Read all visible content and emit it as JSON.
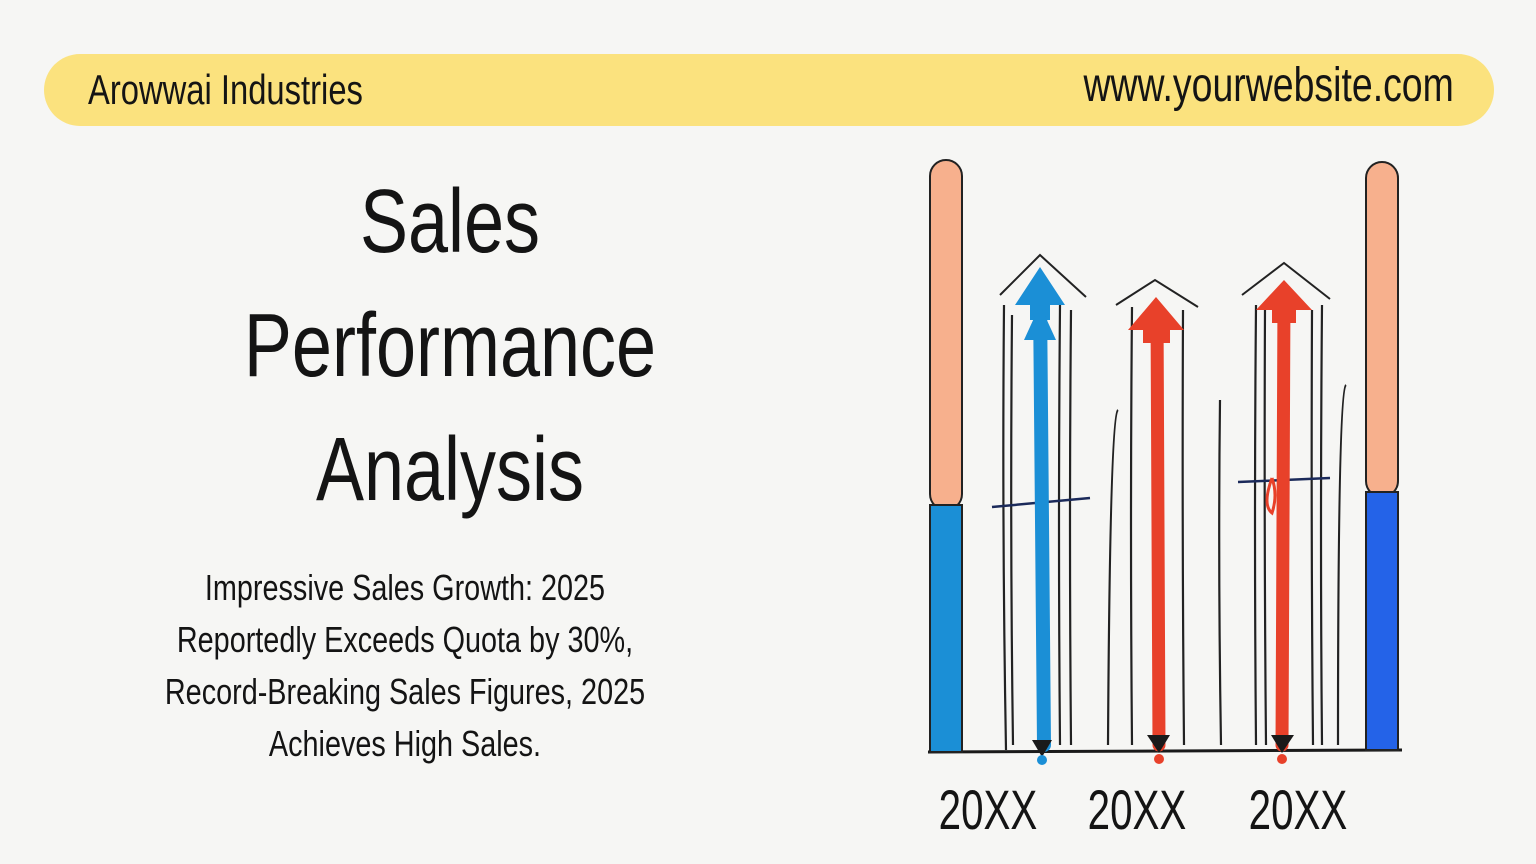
{
  "header": {
    "company": "Arowwai Industries",
    "website": "www.yourwebsite.com"
  },
  "title_lines": [
    "Sales",
    "Performance",
    "Analysis"
  ],
  "description_lines": [
    "Impressive Sales Growth: 2025",
    "Reportedly Exceeds Quota by 30%,",
    "Record-Breaking Sales Figures, 2025",
    "Achieves High Sales."
  ],
  "chart": {
    "year_labels": [
      "20XX",
      "20XX",
      "20XX"
    ],
    "colors": {
      "banner": "#fbe27e",
      "peach": "#f7b08d",
      "blue": "#1b8fd6",
      "red": "#e8412a",
      "royal_blue": "#2463e8"
    }
  }
}
